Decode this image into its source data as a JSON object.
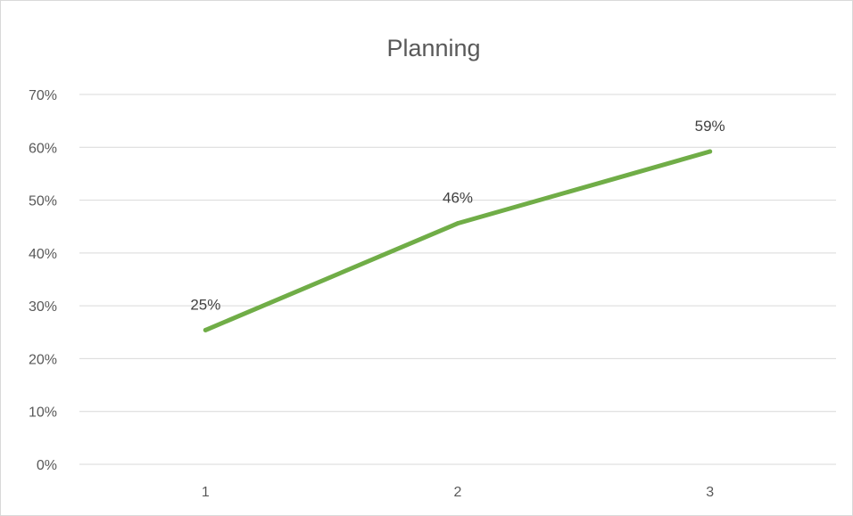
{
  "chart_data": {
    "type": "line",
    "title": "Planning",
    "xlabel": "",
    "ylabel": "",
    "categories": [
      "1",
      "2",
      "3"
    ],
    "series": [
      {
        "values": [
          0.254,
          0.456,
          0.592
        ],
        "data_labels": [
          "25%",
          "46%",
          "59%"
        ]
      }
    ],
    "ylim": [
      0,
      0.7
    ],
    "yticks": [
      0,
      0.1,
      0.2,
      0.3,
      0.4,
      0.5,
      0.6,
      0.7
    ],
    "ytick_labels": [
      "0%",
      "10%",
      "20%",
      "30%",
      "40%",
      "50%",
      "60%",
      "70%"
    ],
    "grid": true,
    "legend": "none",
    "colors": {
      "series": "#70ad47"
    }
  }
}
